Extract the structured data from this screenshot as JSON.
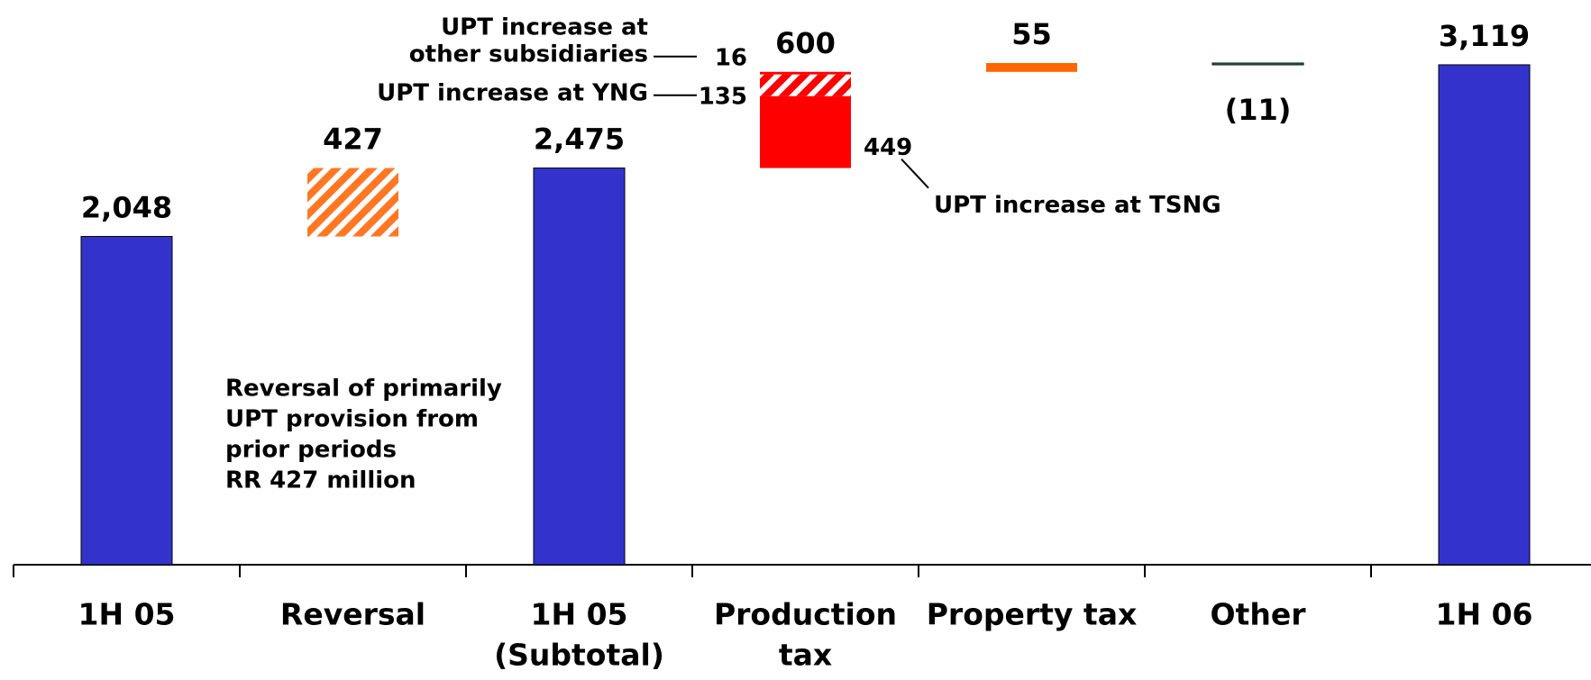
{
  "chart_data": {
    "type": "waterfall",
    "categories": [
      [
        "1H 05"
      ],
      [
        "Reversal"
      ],
      [
        "1H 05",
        "(Subtotal)"
      ],
      [
        "Production",
        "tax"
      ],
      [
        "Property tax"
      ],
      [
        "Other"
      ],
      [
        "1H 06"
      ]
    ],
    "values": [
      2048,
      427,
      2475,
      600,
      55,
      -11,
      3119
    ],
    "value_labels": [
      "2,048",
      "427",
      "2,475",
      "600",
      "55",
      "(11)",
      "3,119"
    ],
    "totals": [
      true,
      false,
      true,
      false,
      false,
      false,
      true
    ],
    "colors": [
      "#3333cc",
      "#ff7722",
      "#3333cc",
      "#ff0000",
      "#ff6600",
      "#339966",
      "#3333cc"
    ],
    "hatched": [
      false,
      true,
      false,
      false,
      false,
      false,
      false
    ],
    "segments": {
      "category": 3,
      "series": [
        {
          "name": [
            "UPT increase at TSNG"
          ],
          "values": [
            449
          ],
          "color": "#ff0000",
          "hatched": false
        },
        {
          "name": [
            "UPT increase at YNG"
          ],
          "values": [
            135
          ],
          "color": "#ff0000",
          "hatched": true
        },
        {
          "name": [
            "UPT increase at",
            "other subsidiaries"
          ],
          "values": [
            16
          ],
          "color": "#ff0000",
          "hatched": false
        }
      ]
    },
    "annotations": [
      {
        "category": 1,
        "text": [
          "Reversal of primarily",
          "UPT provision from",
          "prior periods",
          "RR 427 million"
        ]
      }
    ]
  }
}
